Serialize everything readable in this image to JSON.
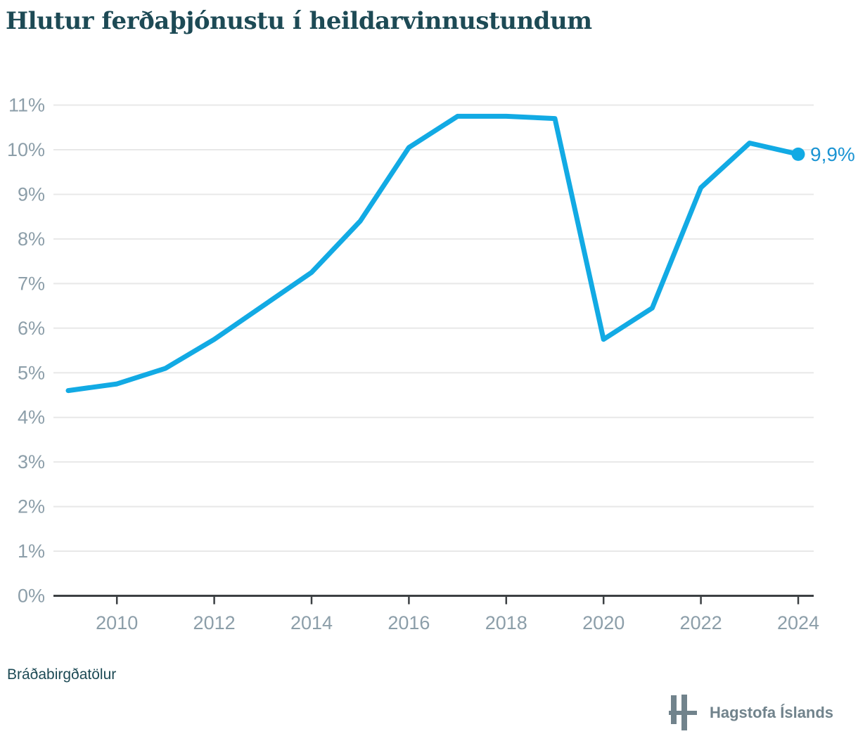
{
  "title": "Hlutur ferðaþjónustu í heildarvinnustundum",
  "footnote": "Bráðabirgðatölur",
  "logo": {
    "text": "Hagstofa Íslands"
  },
  "theme": {
    "title_color": "#1d4a55",
    "axis_text_color": "#8c9ea9",
    "gridline_color": "#e8e8e8",
    "axis_line_color": "#3c4043",
    "footnote_color": "#1d4a55",
    "logo_color": "#71838c",
    "background": "#ffffff"
  },
  "chart_data": {
    "type": "line",
    "title": "Hlutur ferðaþjónustu í heildarvinnustundum",
    "x": [
      2009,
      2010,
      2011,
      2012,
      2013,
      2014,
      2015,
      2016,
      2017,
      2018,
      2019,
      2020,
      2021,
      2022,
      2023,
      2024
    ],
    "values": [
      4.6,
      4.75,
      5.1,
      5.75,
      6.5,
      7.25,
      8.4,
      10.05,
      10.75,
      10.75,
      10.7,
      5.75,
      6.45,
      9.15,
      10.15,
      9.9
    ],
    "end_label": "9,9%",
    "xticks": [
      2010,
      2012,
      2014,
      2016,
      2018,
      2020,
      2022,
      2024
    ],
    "xtick_labels": [
      "2010",
      "2012",
      "2014",
      "2016",
      "2018",
      "2020",
      "2022",
      "2024"
    ],
    "yticks": [
      0,
      1,
      2,
      3,
      4,
      5,
      6,
      7,
      8,
      9,
      10,
      11
    ],
    "ytick_labels": [
      "0%",
      "1%",
      "2%",
      "3%",
      "4%",
      "5%",
      "6%",
      "7%",
      "8%",
      "9%",
      "10%",
      "11%"
    ],
    "ylim": [
      0,
      11
    ],
    "xlim": [
      2009,
      2024
    ],
    "grid": "horizontal",
    "legend": "none",
    "colors": {
      "line": "#12aae4",
      "end_dot": "#12aae4",
      "end_label_text": "#1b94d3"
    }
  }
}
